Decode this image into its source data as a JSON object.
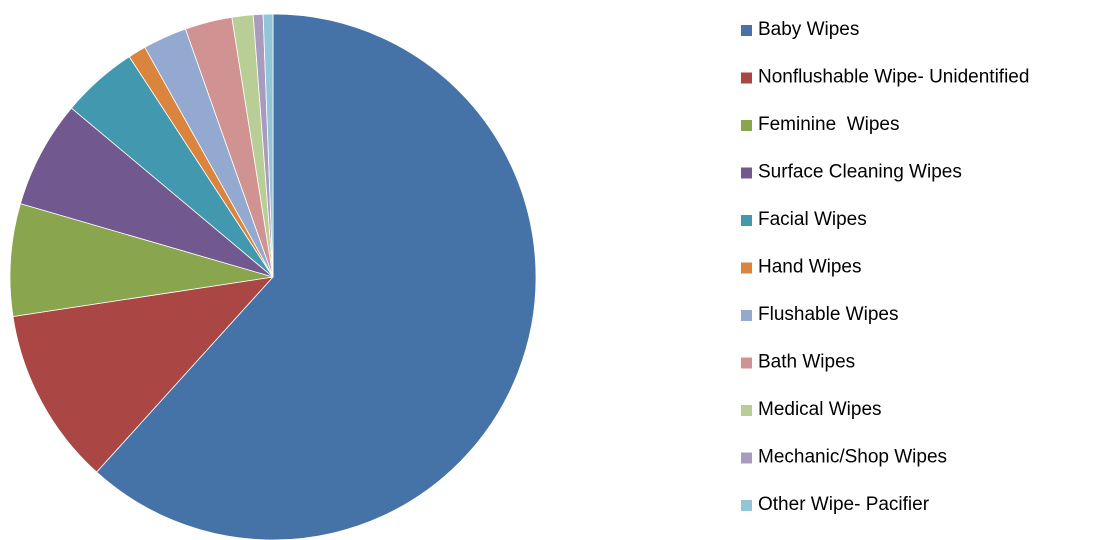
{
  "chart_data": {
    "type": "pie",
    "categories": [
      "Baby Wipes",
      "Nonflushable Wipe- Unidentified",
      "Feminine  Wipes",
      "Surface Cleaning Wipes",
      "Facial Wipes",
      "Hand Wipes",
      "Flushable Wipes",
      "Bath Wipes",
      "Medical Wipes",
      "Mechanic/Shop Wipes",
      "Other Wipe- Pacifier"
    ],
    "values": [
      61.7,
      10.9,
      6.9,
      6.6,
      4.7,
      1.1,
      2.7,
      2.9,
      1.3,
      0.6,
      0.6
    ],
    "colors": [
      "#4572a7",
      "#aa4643",
      "#89a54e",
      "#71588f",
      "#4198af",
      "#db843d",
      "#93a9cf",
      "#d19392",
      "#b9cd96",
      "#a99bbd",
      "#92c5d8"
    ],
    "legend": "right"
  }
}
